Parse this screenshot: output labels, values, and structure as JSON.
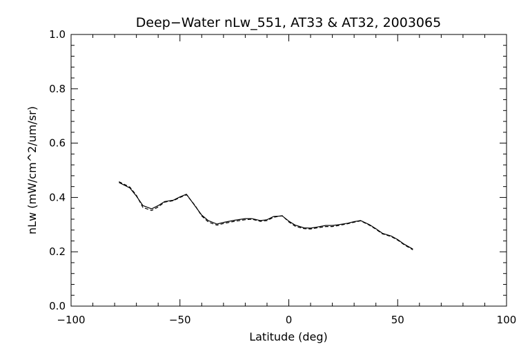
{
  "chart_data": {
    "type": "line",
    "title": "Deep−Water nLw_551, AT33 & AT32, 2003065",
    "xlabel": "Latitude (deg)",
    "ylabel": "nLw (mW/cm^2/um/sr)",
    "xlim": [
      -100,
      100
    ],
    "ylim": [
      0.0,
      1.0
    ],
    "xticks": [
      -100,
      -50,
      0,
      50,
      100
    ],
    "xtick_labels": [
      "−100",
      "−50",
      "0",
      "50",
      "100"
    ],
    "yticks": [
      0.0,
      0.2,
      0.4,
      0.6,
      0.8,
      1.0
    ],
    "ytick_labels": [
      "0.0",
      "0.2",
      "0.4",
      "0.6",
      "0.8",
      "1.0"
    ],
    "grid": false,
    "series": [
      {
        "style": "solid",
        "x": [
          -78,
          -73,
          -70,
          -67,
          -63,
          -60,
          -57,
          -53,
          -50,
          -47,
          -43,
          -40,
          -37,
          -33,
          -30,
          -25,
          -20,
          -17,
          -13,
          -10,
          -7,
          -3,
          0,
          3,
          7,
          10,
          13,
          17,
          20,
          23,
          27,
          30,
          33,
          37,
          40,
          43,
          47,
          50,
          53,
          57
        ],
        "y": [
          0.455,
          0.435,
          0.405,
          0.37,
          0.358,
          0.37,
          0.385,
          0.39,
          0.402,
          0.412,
          0.368,
          0.335,
          0.315,
          0.302,
          0.308,
          0.316,
          0.322,
          0.322,
          0.315,
          0.318,
          0.33,
          0.332,
          0.313,
          0.298,
          0.288,
          0.287,
          0.291,
          0.297,
          0.297,
          0.3,
          0.305,
          0.311,
          0.315,
          0.3,
          0.285,
          0.268,
          0.258,
          0.245,
          0.228,
          0.21
        ]
      },
      {
        "style": "dashed",
        "x": [
          -78,
          -73,
          -70,
          -67,
          -63,
          -60,
          -57,
          -53,
          -50,
          -47,
          -43,
          -40,
          -37,
          -33,
          -30,
          -25,
          -20,
          -17,
          -13,
          -10,
          -7,
          -3,
          0,
          3,
          7,
          10,
          13,
          17,
          20,
          23,
          27,
          30,
          33,
          37,
          40,
          43,
          47,
          50,
          53,
          57
        ],
        "y": [
          0.458,
          0.438,
          0.408,
          0.363,
          0.352,
          0.365,
          0.383,
          0.388,
          0.4,
          0.41,
          0.37,
          0.332,
          0.31,
          0.298,
          0.304,
          0.312,
          0.318,
          0.32,
          0.312,
          0.315,
          0.327,
          0.333,
          0.31,
          0.294,
          0.285,
          0.284,
          0.288,
          0.293,
          0.293,
          0.297,
          0.303,
          0.309,
          0.314,
          0.298,
          0.283,
          0.266,
          0.256,
          0.243,
          0.226,
          0.207
        ]
      }
    ]
  }
}
